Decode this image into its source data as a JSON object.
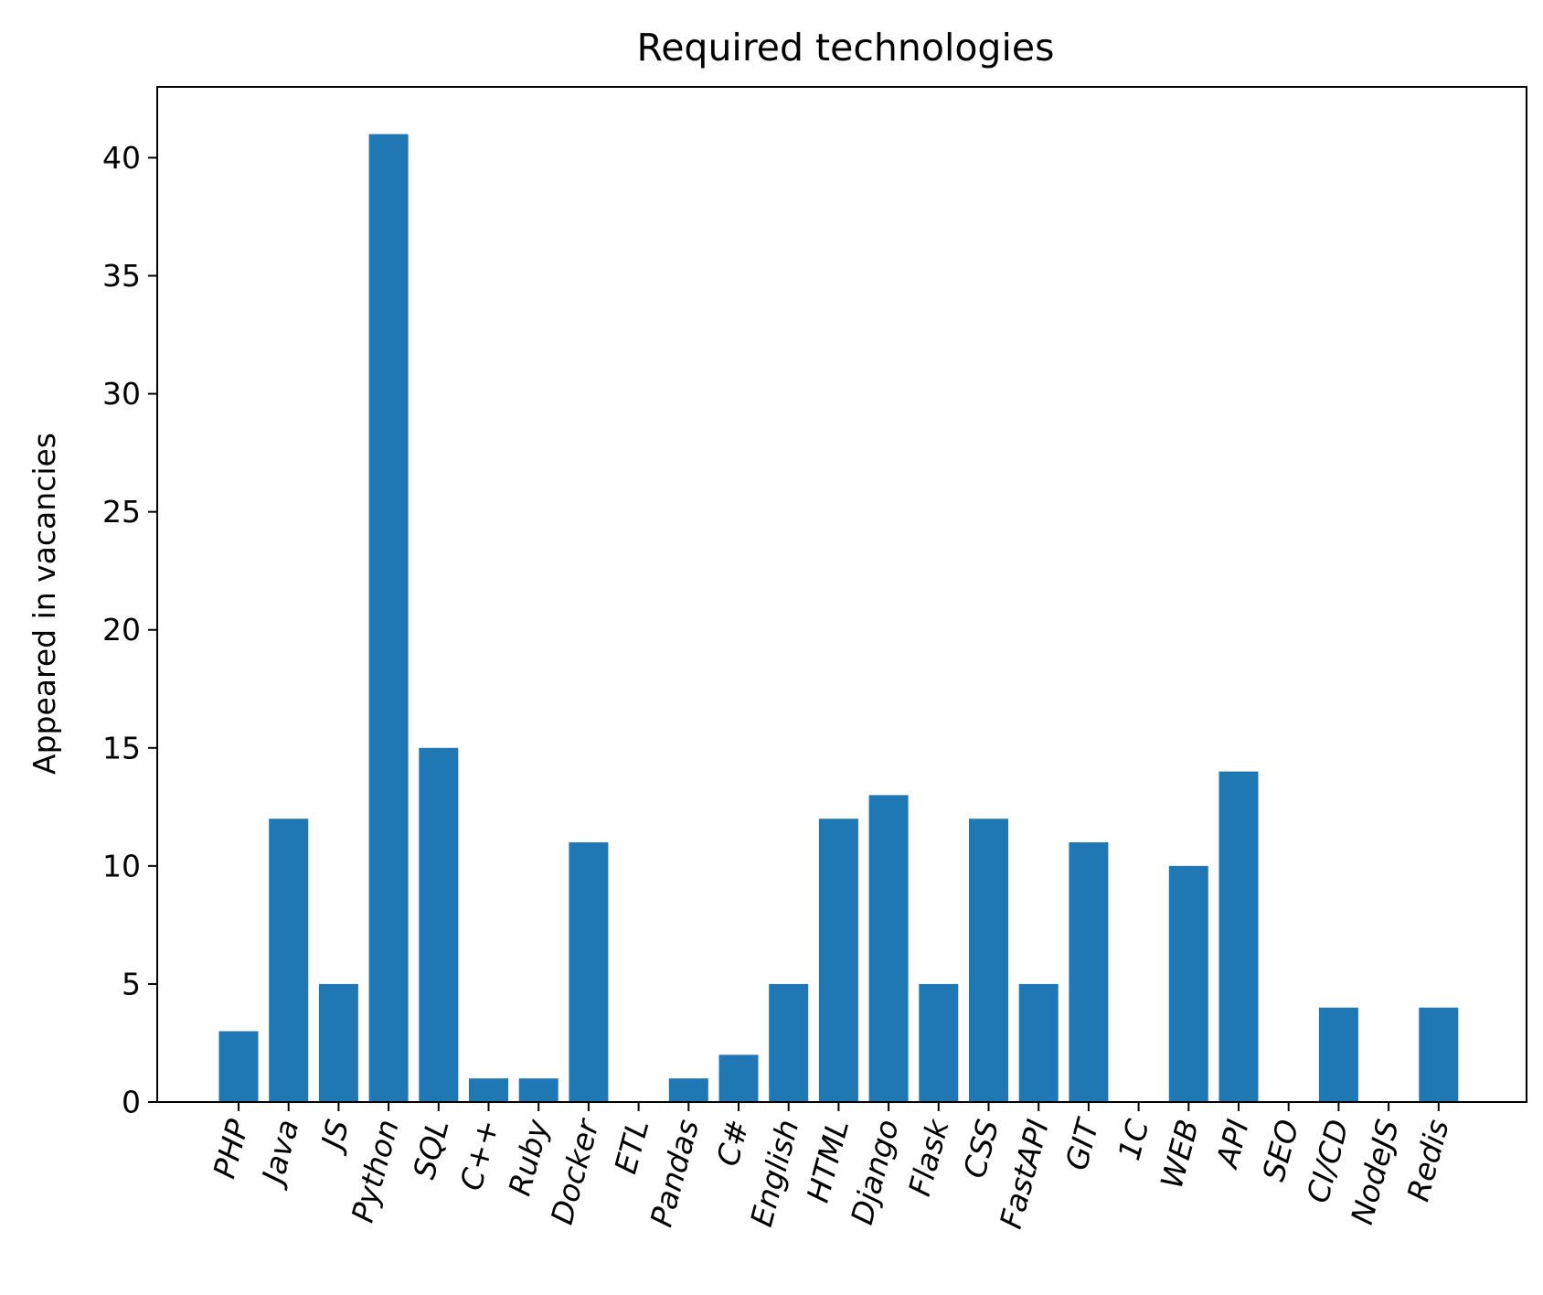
{
  "chart_data": {
    "type": "bar",
    "title": "Required technologies",
    "xlabel": "",
    "ylabel": "Appeared in vacancies",
    "categories": [
      "PHP",
      "Java",
      "JS",
      "Python",
      "SQL",
      "C++",
      "Ruby",
      "Docker",
      "ETL",
      "Pandas",
      "C#",
      "English",
      "HTML",
      "Django",
      "Flask",
      "CSS",
      "FastAPI",
      "GIT",
      "1C",
      "WEB",
      "API",
      "SEO",
      "CI/CD",
      "NodeJS",
      "Redis"
    ],
    "values": [
      3,
      12,
      5,
      41,
      15,
      1,
      1,
      11,
      0,
      1,
      2,
      5,
      12,
      13,
      5,
      12,
      5,
      11,
      0,
      10,
      14,
      0,
      4,
      0,
      4
    ],
    "ylim": [
      0,
      43
    ],
    "yticks": [
      0,
      5,
      10,
      15,
      20,
      25,
      30,
      35,
      40
    ],
    "bar_color": "#1f77b4",
    "grid": false,
    "legend": false
  }
}
